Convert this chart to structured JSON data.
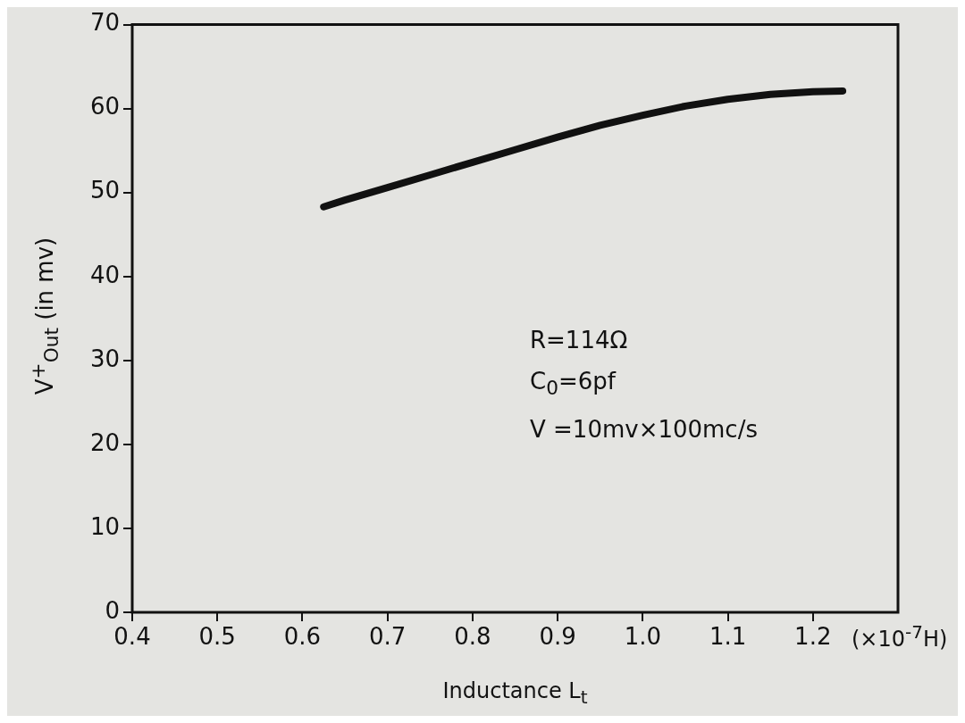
{
  "chart_data": {
    "type": "line",
    "xlabel": "Inductance L$_{t}$",
    "ylabel": "V$^{+}$$_{Out}$ (in mv)",
    "x": [
      0.625,
      0.65,
      0.7,
      0.75,
      0.8,
      0.85,
      0.9,
      0.95,
      1.0,
      1.05,
      1.1,
      1.15,
      1.2,
      1.235
    ],
    "series": [
      {
        "color": "#111111",
        "values": [
          48.3,
          49.1,
          50.6,
          52.1,
          53.6,
          55.1,
          56.6,
          58.0,
          59.2,
          60.3,
          61.1,
          61.7,
          62.0,
          62.1
        ]
      }
    ],
    "xlim": [
      0.4,
      1.3
    ],
    "xticks": [
      0.4,
      0.5,
      0.6,
      0.7,
      0.8,
      0.9,
      {
        "value": 1.0,
        "label": "1.0"
      },
      1.1,
      1.2
    ],
    "ylim": [
      0,
      70
    ],
    "yticks": [
      0,
      10,
      20,
      30,
      40,
      50,
      60,
      70
    ],
    "annotations": [
      "(×10$^{-7}$H)",
      "R=114Ω",
      "C$_{0}$=6pf",
      "V =10mv×100mc/s"
    ],
    "grid": false,
    "legend": false,
    "marker": "none",
    "line_style": "solid"
  }
}
